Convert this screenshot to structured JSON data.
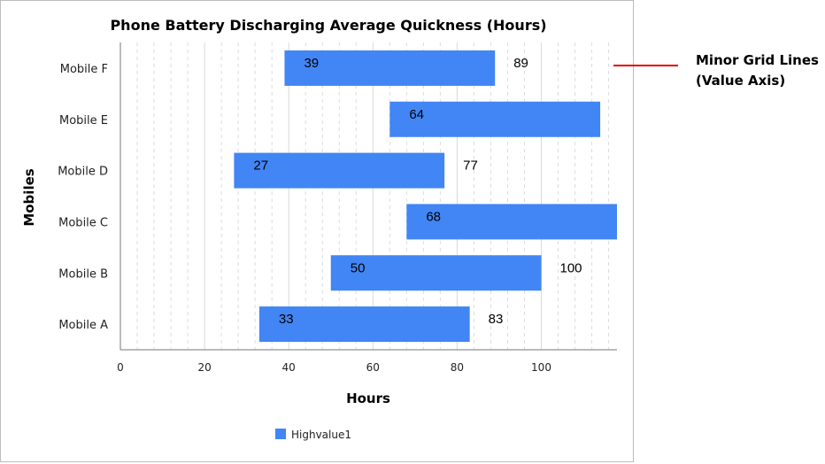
{
  "chart_data": {
    "type": "bar",
    "orientation": "horizontal",
    "subtype": "floating-range",
    "title": "Phone Battery Discharging Average Quickness (Hours)",
    "xlabel": "Hours",
    "ylabel": "Mobiles",
    "categories": [
      "Mobile A",
      "Mobile B",
      "Mobile C",
      "Mobile D",
      "Mobile E",
      "Mobile F"
    ],
    "series": [
      {
        "name": "Highvalue1",
        "color": "#4285f4",
        "low": [
          33,
          50,
          68,
          27,
          64,
          39
        ],
        "high": [
          83,
          100,
          118,
          77,
          114,
          89
        ]
      }
    ],
    "low_labels": [
      "33",
      "50",
      "68",
      "27",
      "64",
      "39"
    ],
    "high_labels": [
      "83",
      "100",
      "",
      "77",
      "",
      "89"
    ],
    "xticks": [
      "0",
      "20",
      "40",
      "60",
      "80",
      "100"
    ],
    "xlim": [
      0,
      118
    ],
    "grid": "minor vertical gridlines on value axis",
    "legend": "bottom"
  },
  "annotation": {
    "text_line1": "Minor Grid Lines",
    "text_line2": "(Value Axis)",
    "line_color": "#e00000"
  }
}
